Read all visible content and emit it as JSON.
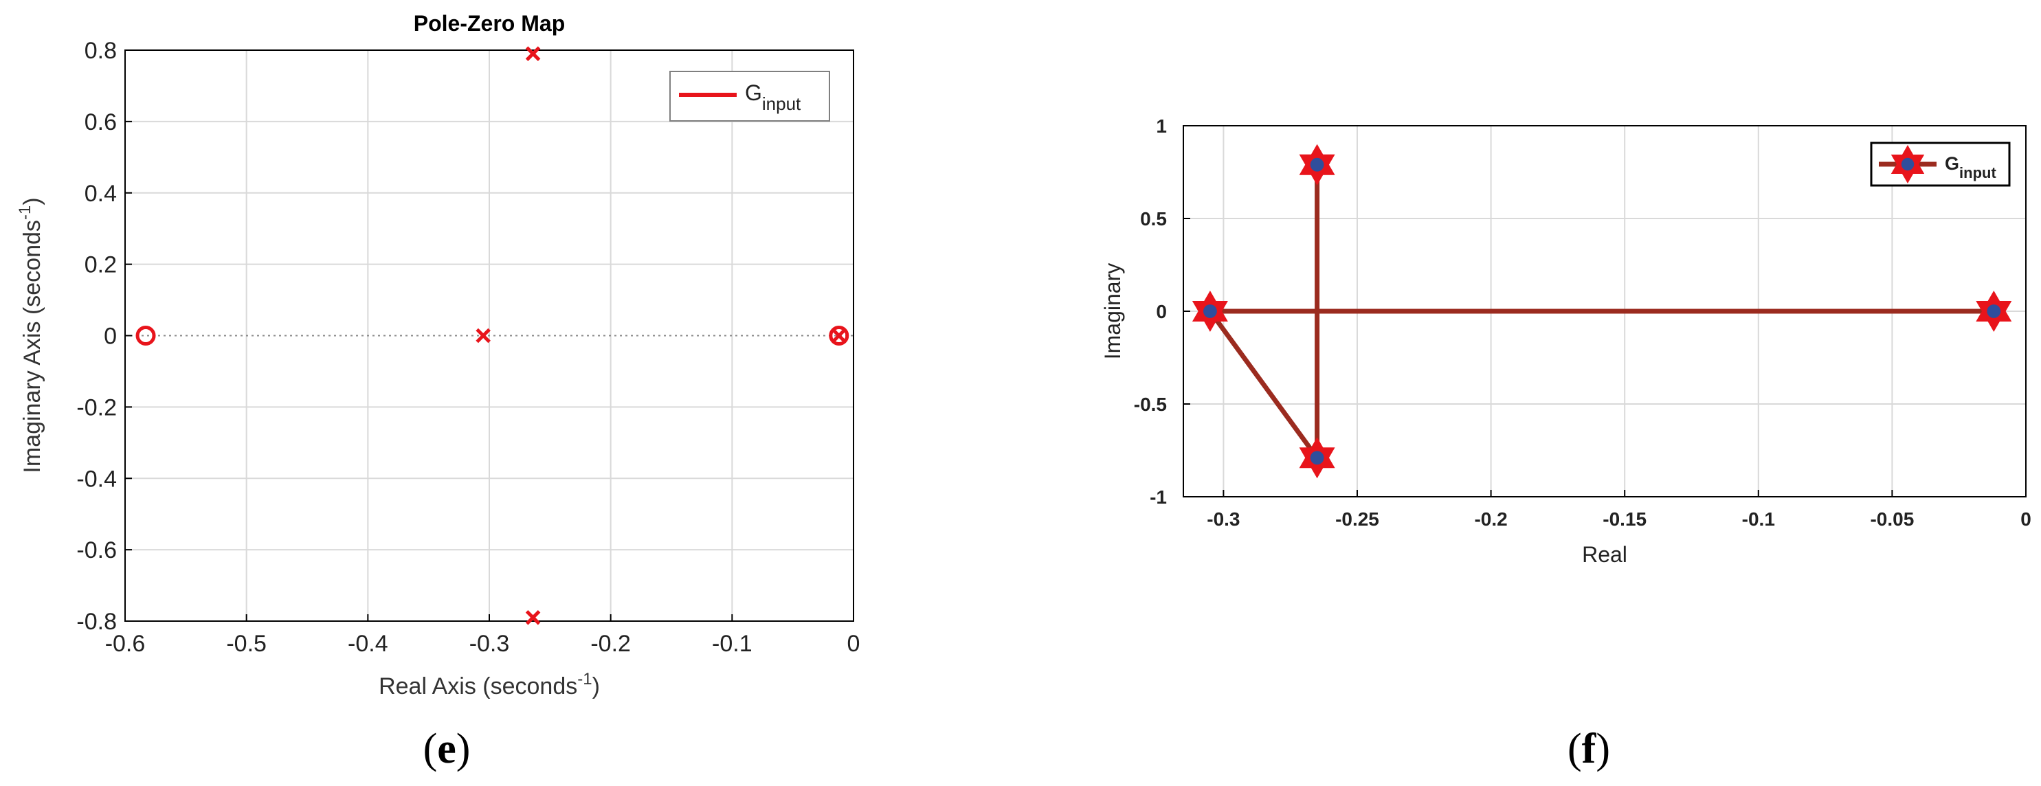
{
  "colors": {
    "pole_marker": "#e8141b",
    "zero_marker": "#e8141b",
    "legend_line": "#e8141b",
    "root_line": "#9b2b1f",
    "star_fill": "#e8141b",
    "star_center": "#2f4e9c",
    "grid": "#d9d9d9",
    "axis": "#000000"
  },
  "chart_data": [
    {
      "type": "scatter",
      "caption_letter": "e",
      "title": "Pole-Zero Map",
      "xlabel": {
        "base": "Real Axis (seconds",
        "sup": "-1",
        "tail": ")"
      },
      "ylabel": {
        "base": "Imaginary Axis (seconds",
        "sup": "-1",
        "tail": ")"
      },
      "xlim": [
        -0.6,
        0
      ],
      "ylim": [
        -0.8,
        0.8
      ],
      "xticks": [
        -0.6,
        -0.5,
        -0.4,
        -0.3,
        -0.2,
        -0.1,
        0
      ],
      "xtick_labels": [
        "-0.6",
        "-0.5",
        "-0.4",
        "-0.3",
        "-0.2",
        "-0.1",
        "0"
      ],
      "yticks": [
        -0.8,
        -0.6,
        -0.4,
        -0.2,
        0,
        0.2,
        0.4,
        0.6,
        0.8
      ],
      "ytick_labels": [
        "-0.8",
        "-0.6",
        "-0.4",
        "-0.2",
        "0",
        "0.2",
        "0.4",
        "0.6",
        "0.8"
      ],
      "grid": true,
      "zero_line": "dotted",
      "legend": {
        "position": "top-right",
        "entries": [
          {
            "base": "G",
            "sub": "input"
          }
        ]
      },
      "poles": [
        {
          "x": -0.264,
          "y": 0.79
        },
        {
          "x": -0.264,
          "y": -0.79
        },
        {
          "x": -0.305,
          "y": 0
        },
        {
          "x": -0.012,
          "y": 0
        }
      ],
      "zeros": [
        {
          "x": -0.583,
          "y": 0
        },
        {
          "x": -0.012,
          "y": 0
        }
      ]
    },
    {
      "type": "line",
      "caption_letter": "f",
      "title": "",
      "xlabel": "Real",
      "ylabel": "Imaginary",
      "xlim": [
        -0.315,
        0
      ],
      "ylim": [
        -1,
        1
      ],
      "xticks": [
        -0.3,
        -0.25,
        -0.2,
        -0.15,
        -0.1,
        -0.05,
        0
      ],
      "xtick_labels": [
        "-0.3",
        "-0.25",
        "-0.2",
        "-0.15",
        "-0.1",
        "-0.05",
        "0"
      ],
      "yticks": [
        -1,
        -0.5,
        0,
        0.5,
        1
      ],
      "ytick_labels": [
        "-1",
        "-0.5",
        "0",
        "0.5",
        "1"
      ],
      "grid": true,
      "legend": {
        "position": "top-right",
        "entries": [
          {
            "base": "G",
            "sub": "input"
          }
        ]
      },
      "series": [
        {
          "name": "G_input",
          "x": [
            -0.305,
            -0.265,
            -0.265,
            -0.305,
            -0.012
          ],
          "y": [
            0,
            0.79,
            -0.79,
            0,
            0
          ]
        }
      ],
      "segments": [
        {
          "x": [
            -0.265,
            -0.265
          ],
          "y": [
            0.79,
            -0.79
          ]
        },
        {
          "x": [
            -0.305,
            -0.265
          ],
          "y": [
            0,
            -0.79
          ]
        },
        {
          "x": [
            -0.305,
            -0.012
          ],
          "y": [
            0,
            0
          ]
        }
      ],
      "points": [
        {
          "x": -0.265,
          "y": 0.79
        },
        {
          "x": -0.265,
          "y": -0.79
        },
        {
          "x": -0.305,
          "y": 0
        },
        {
          "x": -0.012,
          "y": 0
        }
      ]
    }
  ]
}
